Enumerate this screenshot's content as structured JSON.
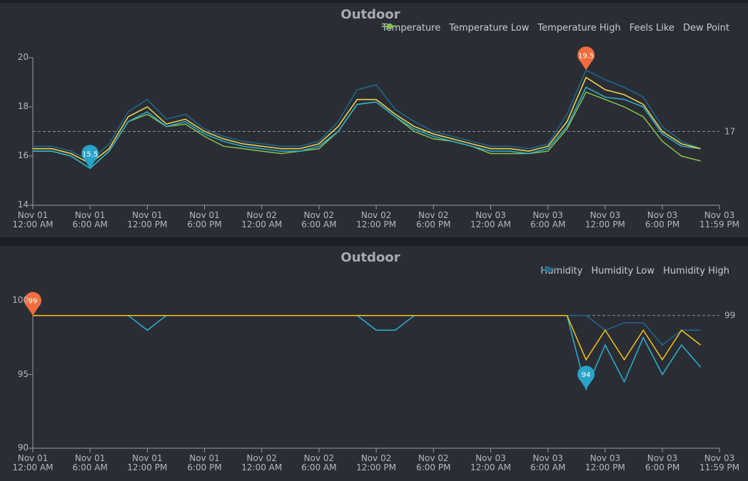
{
  "charts": [
    {
      "type": "line",
      "title": "Outdoor",
      "x": [
        "Nov 01 12:00 AM",
        "Nov 01 2:00 AM",
        "Nov 01 4:00 AM",
        "Nov 01 6:00 AM",
        "Nov 01 8:00 AM",
        "Nov 01 10:00 AM",
        "Nov 01 12:00 PM",
        "Nov 01 2:00 PM",
        "Nov 01 4:00 PM",
        "Nov 01 6:00 PM",
        "Nov 01 8:00 PM",
        "Nov 01 10:00 PM",
        "Nov 02 12:00 AM",
        "Nov 02 2:00 AM",
        "Nov 02 4:00 AM",
        "Nov 02 6:00 AM",
        "Nov 02 8:00 AM",
        "Nov 02 10:00 AM",
        "Nov 02 12:00 PM",
        "Nov 02 2:00 PM",
        "Nov 02 4:00 PM",
        "Nov 02 6:00 PM",
        "Nov 02 8:00 PM",
        "Nov 02 10:00 PM",
        "Nov 03 12:00 AM",
        "Nov 03 2:00 AM",
        "Nov 03 4:00 AM",
        "Nov 03 6:00 AM",
        "Nov 03 8:00 AM",
        "Nov 03 10:00 AM",
        "Nov 03 12:00 PM",
        "Nov 03 2:00 PM",
        "Nov 03 4:00 PM",
        "Nov 03 6:00 PM",
        "Nov 03 8:00 PM",
        "Nov 03 10:00 PM"
      ],
      "series": [
        {
          "name": "Temperature",
          "color": "#f5d33c",
          "values": [
            16.3,
            16.3,
            16.1,
            15.7,
            16.3,
            17.6,
            18.0,
            17.3,
            17.5,
            17.0,
            16.7,
            16.5,
            16.4,
            16.3,
            16.3,
            16.5,
            17.2,
            18.3,
            18.3,
            17.7,
            17.2,
            16.9,
            16.7,
            16.5,
            16.3,
            16.3,
            16.2,
            16.4,
            17.4,
            19.2,
            18.7,
            18.5,
            18.1,
            17.0,
            16.5,
            16.3
          ]
        },
        {
          "name": "Temperature Low",
          "color": "#2ab4d2",
          "values": [
            16.2,
            16.2,
            16.0,
            15.5,
            16.2,
            17.4,
            17.8,
            17.2,
            17.4,
            16.9,
            16.6,
            16.4,
            16.3,
            16.2,
            16.2,
            16.4,
            17.0,
            18.1,
            18.2,
            17.6,
            17.1,
            16.8,
            16.6,
            16.4,
            16.2,
            16.2,
            16.1,
            16.3,
            17.2,
            18.8,
            18.4,
            18.3,
            18.0,
            16.9,
            16.4,
            16.3
          ]
        },
        {
          "name": "Temperature High",
          "color": "#1f6a90",
          "values": [
            16.4,
            16.4,
            16.2,
            15.8,
            16.5,
            17.8,
            18.3,
            17.5,
            17.7,
            17.1,
            16.8,
            16.6,
            16.5,
            16.4,
            16.4,
            16.6,
            17.4,
            18.7,
            18.9,
            17.9,
            17.4,
            17.0,
            16.8,
            16.6,
            16.4,
            16.4,
            16.3,
            16.5,
            17.7,
            19.5,
            19.1,
            18.8,
            18.4,
            17.2,
            16.6,
            16.3
          ]
        },
        {
          "name": "Feels Like",
          "color": "#3f8ef0",
          "values": [
            16.3,
            16.3,
            16.1,
            15.7,
            16.3,
            17.6,
            18.0,
            17.3,
            17.5,
            17.0,
            16.7,
            16.5,
            16.4,
            16.3,
            16.3,
            16.5,
            17.2,
            18.3,
            18.3,
            17.7,
            17.2,
            16.9,
            16.7,
            16.5,
            16.3,
            16.3,
            16.2,
            16.4,
            17.4,
            19.2,
            18.7,
            18.5,
            18.1,
            17.0,
            16.5,
            16.3
          ]
        },
        {
          "name": "Dew Point",
          "color": "#8bc34a",
          "values": [
            16.2,
            16.2,
            16.0,
            15.5,
            16.2,
            17.4,
            17.7,
            17.2,
            17.3,
            16.8,
            16.4,
            16.3,
            16.2,
            16.1,
            16.2,
            16.3,
            17.0,
            18.1,
            18.2,
            17.6,
            17.0,
            16.7,
            16.6,
            16.4,
            16.1,
            16.1,
            16.1,
            16.2,
            17.1,
            18.6,
            18.3,
            18.0,
            17.6,
            16.6,
            16.0,
            15.8
          ]
        }
      ],
      "xlim": [
        "Nov 01 12:00 AM",
        "Nov 03 11:59 PM"
      ],
      "xticks": [
        "Nov 01 12:00 AM",
        "Nov 01 6:00 AM",
        "Nov 01 12:00 PM",
        "Nov 01 6:00 PM",
        "Nov 02 12:00 AM",
        "Nov 02 6:00 AM",
        "Nov 02 12:00 PM",
        "Nov 02 6:00 PM",
        "Nov 03 12:00 AM",
        "Nov 03 6:00 AM",
        "Nov 03 12:00 PM",
        "Nov 03 6:00 PM",
        "Nov 03 11:59 PM"
      ],
      "ylim": [
        14,
        20
      ],
      "yticks": [
        14,
        16,
        18,
        20
      ],
      "ref_line": 17,
      "max_marker": {
        "x": "Nov 03 10:00 AM",
        "value": 19.5,
        "color": "#f26d3d"
      },
      "min_marker": {
        "x": "Nov 01 6:00 AM",
        "value": 15.5,
        "color": "#2aa3c8"
      }
    },
    {
      "type": "line",
      "title": "Outdoor",
      "x": [
        "Nov 01 12:00 AM",
        "Nov 01 2:00 AM",
        "Nov 01 4:00 AM",
        "Nov 01 6:00 AM",
        "Nov 01 8:00 AM",
        "Nov 01 10:00 AM",
        "Nov 01 12:00 PM",
        "Nov 01 2:00 PM",
        "Nov 01 4:00 PM",
        "Nov 01 6:00 PM",
        "Nov 01 8:00 PM",
        "Nov 01 10:00 PM",
        "Nov 02 12:00 AM",
        "Nov 02 2:00 AM",
        "Nov 02 4:00 AM",
        "Nov 02 6:00 AM",
        "Nov 02 8:00 AM",
        "Nov 02 10:00 AM",
        "Nov 02 12:00 PM",
        "Nov 02 2:00 PM",
        "Nov 02 4:00 PM",
        "Nov 02 6:00 PM",
        "Nov 02 8:00 PM",
        "Nov 02 10:00 PM",
        "Nov 03 12:00 AM",
        "Nov 03 2:00 AM",
        "Nov 03 4:00 AM",
        "Nov 03 6:00 AM",
        "Nov 03 8:00 AM",
        "Nov 03 10:00 AM",
        "Nov 03 12:00 PM",
        "Nov 03 2:00 PM",
        "Nov 03 4:00 PM",
        "Nov 03 6:00 PM",
        "Nov 03 8:00 PM",
        "Nov 03 10:00 PM"
      ],
      "series": [
        {
          "name": "Humidity",
          "color": "#f5c518",
          "values": [
            99,
            99,
            99,
            99,
            99,
            99,
            99,
            99,
            99,
            99,
            99,
            99,
            99,
            99,
            99,
            99,
            99,
            99,
            99,
            99,
            99,
            99,
            99,
            99,
            99,
            99,
            99,
            99,
            99,
            96,
            98,
            96,
            98,
            96,
            98,
            97
          ]
        },
        {
          "name": "Humidity Low",
          "color": "#2ab4d2",
          "values": [
            99,
            99,
            99,
            99,
            99,
            99,
            98,
            99,
            99,
            99,
            99,
            99,
            99,
            99,
            99,
            99,
            99,
            99,
            98,
            98,
            99,
            99,
            99,
            99,
            99,
            99,
            99,
            99,
            99,
            94,
            97,
            94.5,
            97.5,
            95,
            97,
            95.5
          ]
        },
        {
          "name": "Humidity High",
          "color": "#1f6a90",
          "values": [
            99,
            99,
            99,
            99,
            99,
            99,
            99,
            99,
            99,
            99,
            99,
            99,
            99,
            99,
            99,
            99,
            99,
            99,
            99,
            99,
            99,
            99,
            99,
            99,
            99,
            99,
            99,
            99,
            99,
            99,
            98,
            98.5,
            98.5,
            97,
            98,
            98
          ]
        }
      ],
      "xlim": [
        "Nov 01 12:00 AM",
        "Nov 03 11:59 PM"
      ],
      "xticks": [
        "Nov 01 12:00 AM",
        "Nov 01 6:00 AM",
        "Nov 01 12:00 PM",
        "Nov 01 6:00 PM",
        "Nov 02 12:00 AM",
        "Nov 02 6:00 AM",
        "Nov 02 12:00 PM",
        "Nov 02 6:00 PM",
        "Nov 03 12:00 AM",
        "Nov 03 6:00 AM",
        "Nov 03 12:00 PM",
        "Nov 03 6:00 PM",
        "Nov 03 11:59 PM"
      ],
      "ylim": [
        90,
        100
      ],
      "yticks": [
        90,
        95,
        100
      ],
      "ref_line": 99,
      "max_marker": {
        "x": "Nov 01 12:00 AM",
        "value": 99,
        "color": "#f26d3d"
      },
      "min_marker": {
        "x": "Nov 03 10:00 AM",
        "value": 94,
        "color": "#2aa3c8"
      }
    }
  ]
}
